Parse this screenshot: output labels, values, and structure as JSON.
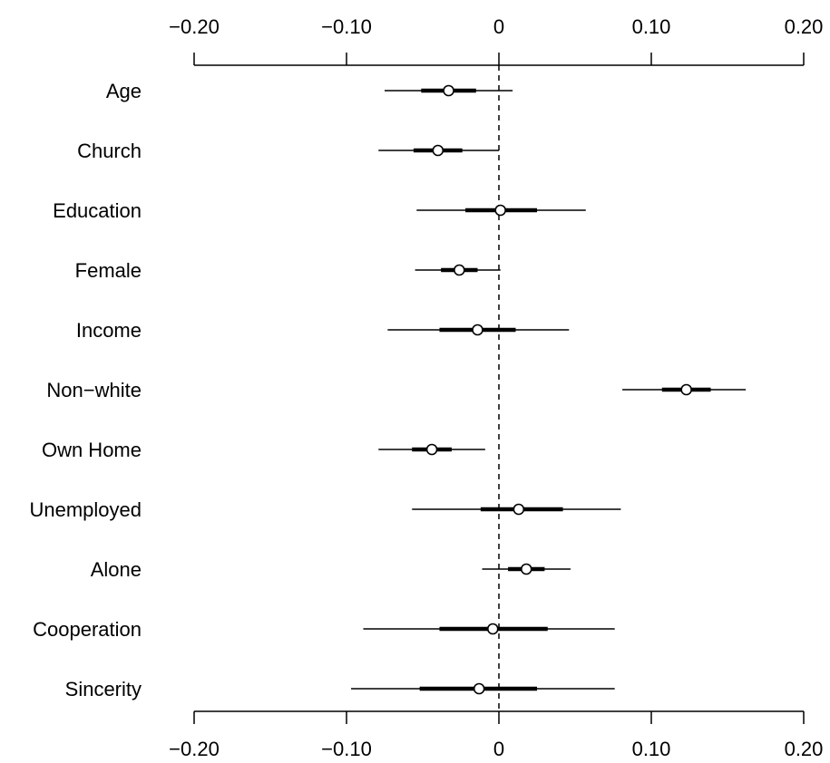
{
  "chart_data": {
    "type": "coefficient-plot",
    "title": "",
    "xlabel": "",
    "ylabel": "",
    "xlim": [
      -0.2,
      0.2
    ],
    "x_ticks": [
      -0.2,
      -0.1,
      0,
      0.1,
      0.2
    ],
    "x_tick_labels": [
      "−0.20",
      "−0.10",
      "0",
      "0.10",
      "0.20"
    ],
    "reference_line": 0,
    "axes": [
      "top",
      "bottom"
    ],
    "grid": false,
    "legend": "none",
    "colors": {
      "line": "#000000",
      "background": "#ffffff"
    },
    "categories": [
      "Age",
      "Church",
      "Education",
      "Female",
      "Income",
      "Non−white",
      "Own Home",
      "Unemployed",
      "Alone",
      "Cooperation",
      "Sincerity"
    ],
    "estimate": [
      -0.033,
      -0.04,
      0.001,
      -0.026,
      -0.014,
      0.123,
      -0.044,
      0.013,
      0.018,
      -0.004,
      -0.013
    ],
    "ci_inner_low": [
      -0.051,
      -0.056,
      -0.022,
      -0.038,
      -0.039,
      0.107,
      -0.057,
      -0.012,
      0.006,
      -0.039,
      -0.052
    ],
    "ci_inner_high": [
      -0.015,
      -0.024,
      0.025,
      -0.014,
      0.011,
      0.139,
      -0.031,
      0.042,
      0.03,
      0.032,
      0.025
    ],
    "ci_outer_low": [
      -0.075,
      -0.079,
      -0.054,
      -0.055,
      -0.073,
      0.081,
      -0.079,
      -0.057,
      -0.011,
      -0.089,
      -0.097
    ],
    "ci_outer_high": [
      0.009,
      0.0,
      0.057,
      0.001,
      0.046,
      0.162,
      -0.009,
      0.08,
      0.047,
      0.076,
      0.076
    ]
  }
}
